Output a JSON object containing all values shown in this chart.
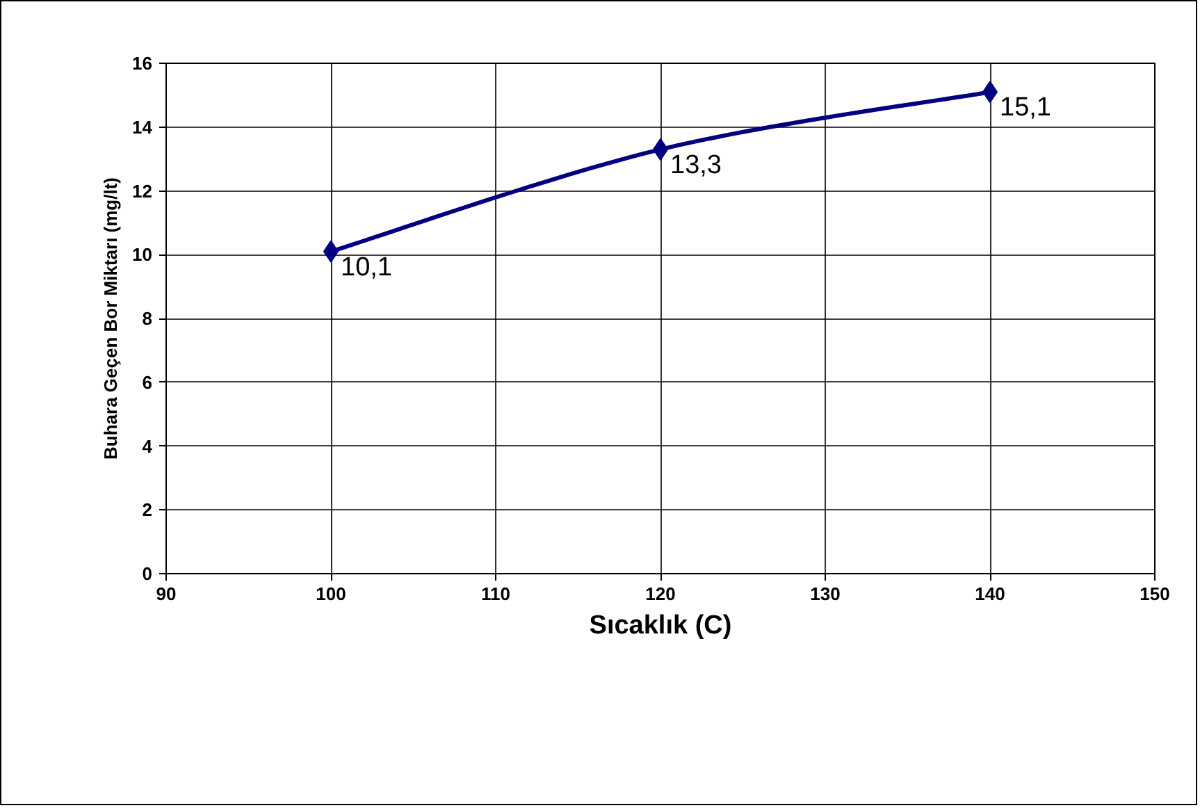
{
  "chart_data": {
    "type": "line",
    "xlabel": "Sıcaklık (C)",
    "ylabel": "Buhara Geçen Bor Miktarı (mg/lt)",
    "x": [
      100,
      120,
      140
    ],
    "series": [
      {
        "color": "#000080",
        "values": [
          10.1,
          13.3,
          15.1
        ],
        "value_labels": [
          "10,1",
          "13,3",
          "15,1"
        ]
      }
    ],
    "xlim": [
      90,
      150
    ],
    "xticks": [
      90,
      100,
      110,
      120,
      130,
      140,
      150
    ],
    "ylim": [
      0,
      16
    ],
    "yticks": [
      0,
      2,
      4,
      6,
      8,
      10,
      12,
      14,
      16
    ],
    "grid": true,
    "marker": "diamond",
    "line_style": "solid"
  }
}
